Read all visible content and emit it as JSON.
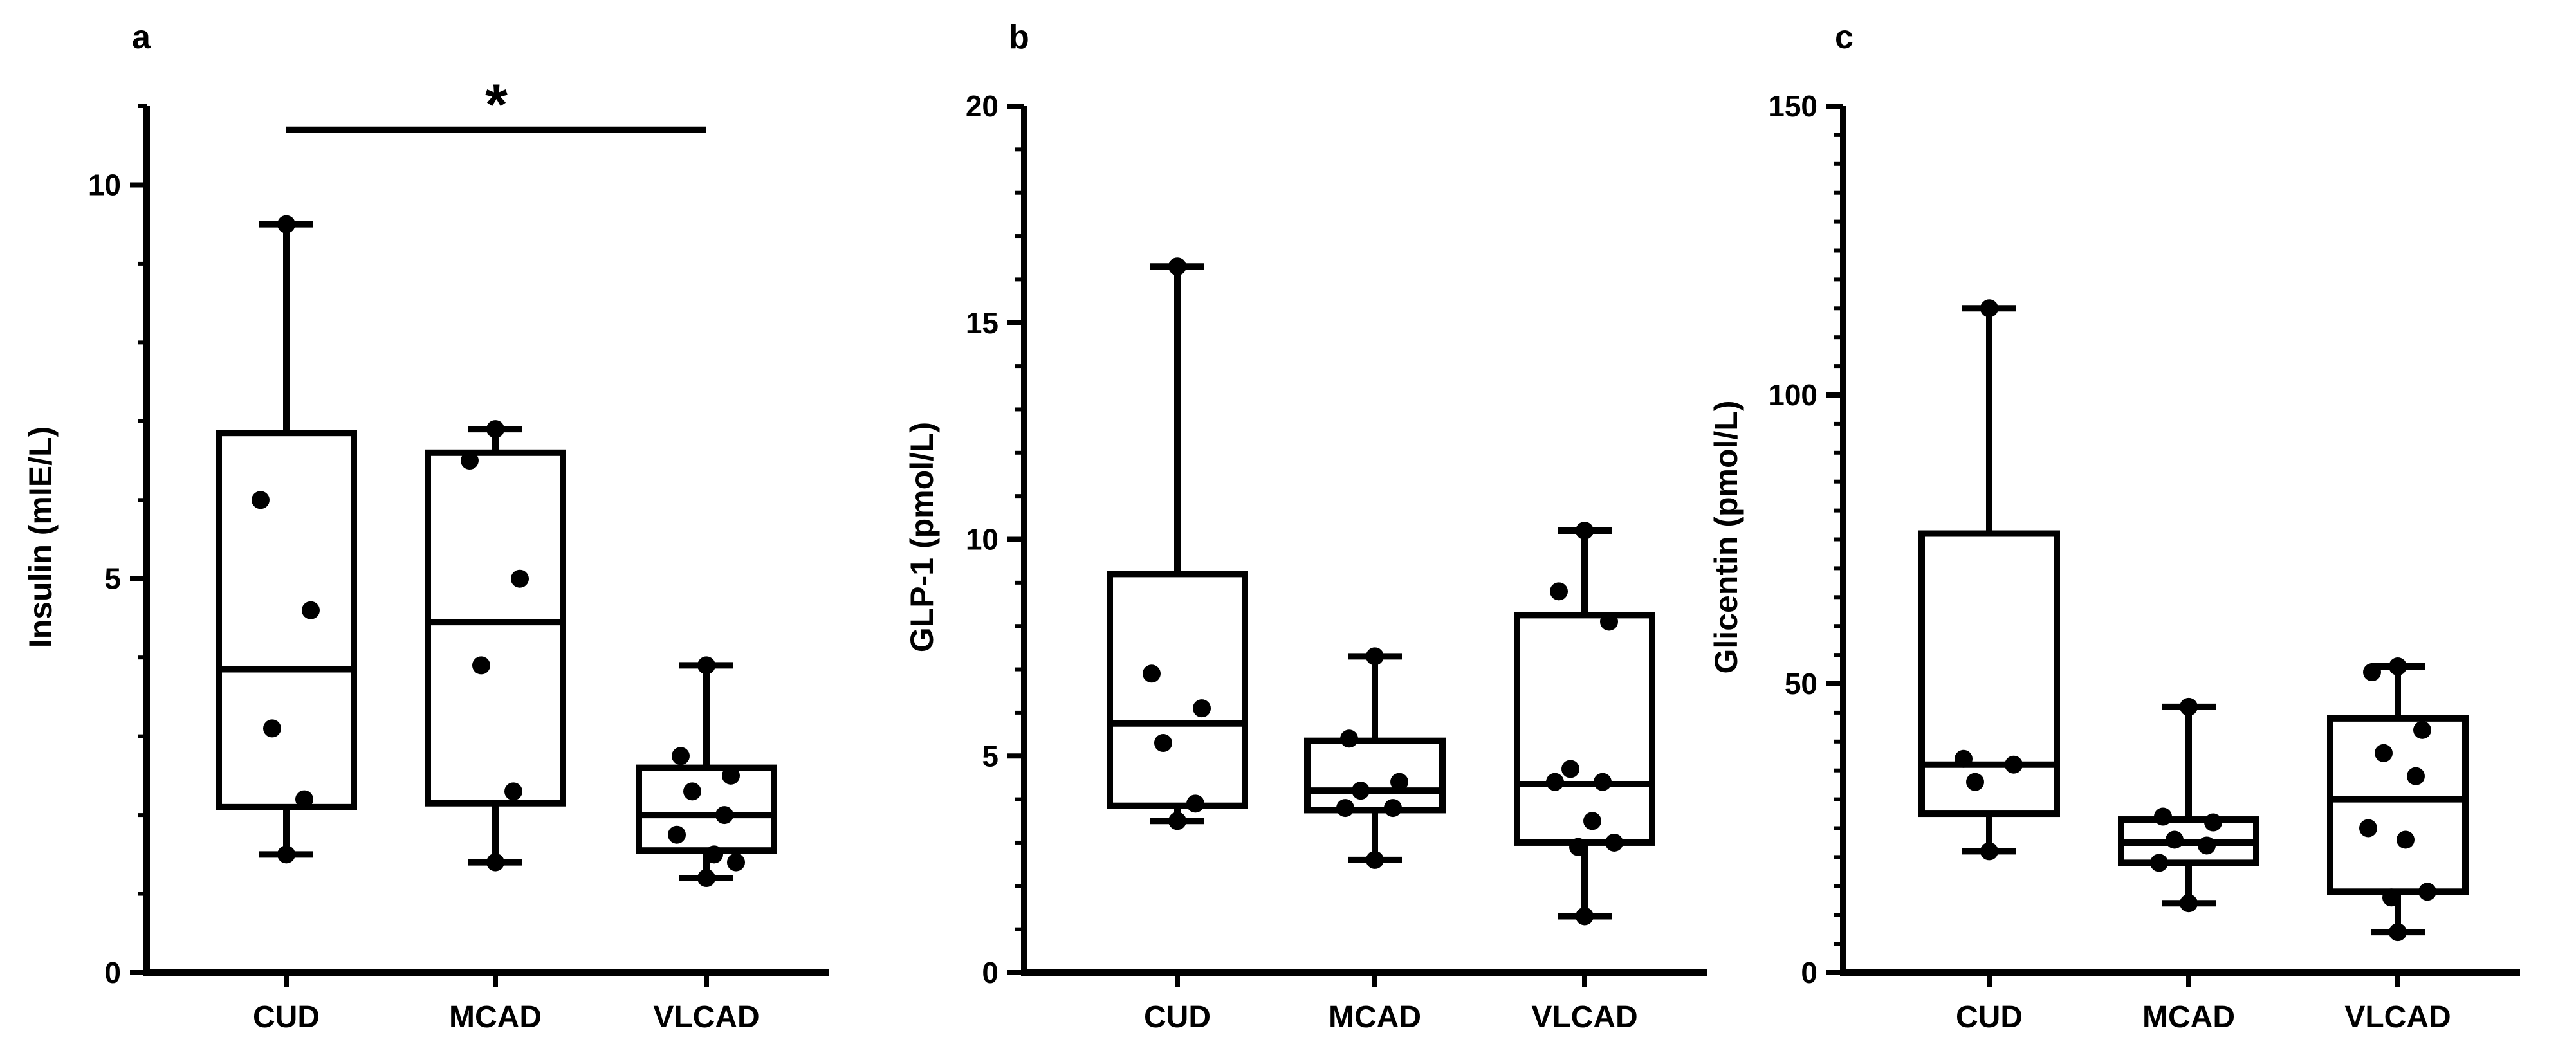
{
  "figure": {
    "panels": [
      {
        "id": "panel-a",
        "letter": "a",
        "ylabel": "Insulin (mIE/L)"
      },
      {
        "id": "panel-b",
        "letter": "b",
        "ylabel": "GLP-1 (pmol/L)"
      },
      {
        "id": "panel-c",
        "letter": "c",
        "ylabel": "Glicentin (pmol/L)"
      }
    ]
  },
  "colors": {
    "ink": "#000000",
    "background": "#ffffff"
  },
  "chart_data": [
    {
      "type": "box",
      "panel": "a",
      "title": "",
      "xlabel": "",
      "ylabel": "Insulin (mIE/L)",
      "ylim": [
        0,
        11
      ],
      "major_ticks": [
        0,
        5,
        10
      ],
      "minor_tick_step": 1,
      "categories": [
        "CUD",
        "MCAD",
        "VLCAD"
      ],
      "boxes": [
        {
          "min": 1.5,
          "q1": 2.1,
          "median": 3.85,
          "q3": 6.85,
          "max": 9.5,
          "points": [
            9.5,
            6.0,
            4.6,
            3.1,
            2.2,
            1.5
          ]
        },
        {
          "min": 1.4,
          "q1": 2.15,
          "median": 4.45,
          "q3": 6.6,
          "max": 6.9,
          "points": [
            6.9,
            6.5,
            5.0,
            3.9,
            2.3,
            1.4
          ]
        },
        {
          "min": 1.2,
          "q1": 1.55,
          "median": 2.0,
          "q3": 2.6,
          "max": 3.9,
          "points": [
            3.9,
            2.75,
            2.5,
            2.3,
            2.0,
            1.75,
            1.5,
            1.4,
            1.2
          ]
        }
      ],
      "annotations": [
        {
          "from": "CUD",
          "to": "VLCAD",
          "y": 10.7,
          "text": "*"
        }
      ]
    },
    {
      "type": "box",
      "panel": "b",
      "title": "",
      "xlabel": "",
      "ylabel": "GLP-1 (pmol/L)",
      "ylim": [
        0,
        20
      ],
      "major_ticks": [
        0,
        5,
        10,
        15,
        20
      ],
      "minor_tick_step": 1,
      "categories": [
        "CUD",
        "MCAD",
        "VLCAD"
      ],
      "boxes": [
        {
          "min": 3.5,
          "q1": 3.85,
          "median": 5.75,
          "q3": 9.2,
          "max": 16.3,
          "points": [
            16.3,
            6.9,
            6.1,
            5.3,
            3.9,
            3.5
          ]
        },
        {
          "min": 2.6,
          "q1": 3.75,
          "median": 4.2,
          "q3": 5.35,
          "max": 7.3,
          "points": [
            7.3,
            5.4,
            4.4,
            4.2,
            3.8,
            3.8,
            2.6
          ]
        },
        {
          "min": 1.3,
          "q1": 3.0,
          "median": 4.35,
          "q3": 8.25,
          "max": 10.2,
          "points": [
            10.2,
            8.8,
            8.1,
            4.7,
            4.4,
            4.4,
            3.5,
            3.0,
            2.9,
            1.3
          ]
        }
      ]
    },
    {
      "type": "box",
      "panel": "c",
      "title": "",
      "xlabel": "",
      "ylabel": "Glicentin (pmol/L)",
      "ylim": [
        0,
        150
      ],
      "major_ticks": [
        0,
        50,
        100,
        150
      ],
      "minor_tick_step": 5,
      "categories": [
        "CUD",
        "MCAD",
        "VLCAD"
      ],
      "boxes": [
        {
          "min": 21,
          "q1": 27.5,
          "median": 36,
          "q3": 76,
          "max": 115,
          "points": [
            115,
            37,
            36,
            33,
            21
          ]
        },
        {
          "min": 12,
          "q1": 19,
          "median": 22.5,
          "q3": 26.5,
          "max": 46,
          "points": [
            46,
            27,
            26,
            23,
            22,
            19,
            12
          ]
        },
        {
          "min": 7,
          "q1": 14,
          "median": 30,
          "q3": 44,
          "max": 53,
          "points": [
            53,
            52,
            42,
            38,
            34,
            25,
            23,
            14,
            13,
            7
          ]
        }
      ]
    }
  ]
}
